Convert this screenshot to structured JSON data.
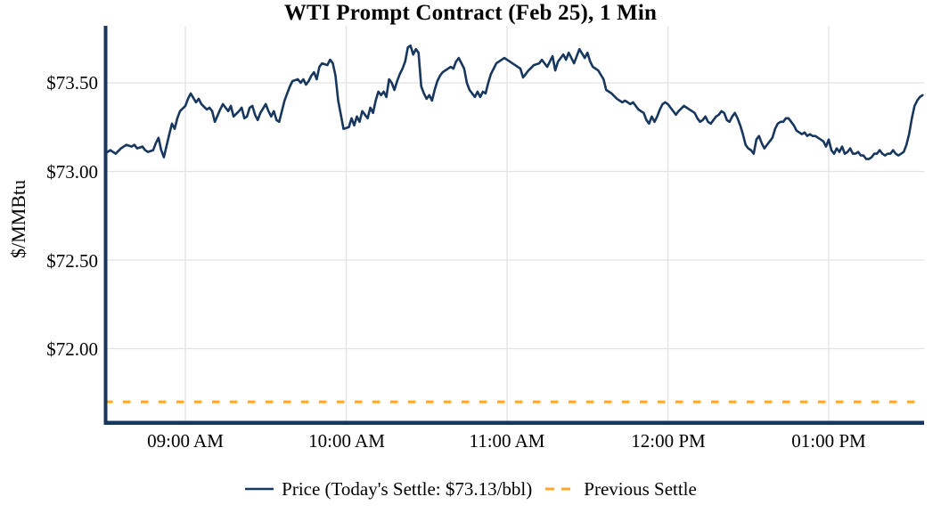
{
  "chart": {
    "title": "WTI Prompt Contract (Feb 25), 1 Min",
    "y_axis_label": "$/MMBtu",
    "y_ticks": [
      "$73.50",
      "$73.00",
      "$72.50",
      "$72.00"
    ],
    "x_ticks": [
      "09:00 AM",
      "10:00 AM",
      "11:00 AM",
      "12:00 PM",
      "01:00 PM"
    ],
    "legend": {
      "price_label": "Price (Today's Settle: $73.13/bbl)",
      "previous_settle_label": "Previous Settle"
    },
    "colors": {
      "price_line": "#17375e",
      "previous_settle_line": "#ffa726",
      "axis": "#17375e",
      "gridline": "#e2e2e2",
      "text": "#000000",
      "background": "#ffffff"
    }
  },
  "chart_data": {
    "type": "line",
    "title": "WTI Prompt Contract (Feb 25), 1 Min",
    "ylabel": "$/MMBtu",
    "y_tick_values": [
      73.5,
      73.0,
      72.5,
      72.0
    ],
    "y_tick_labels": [
      "$73.50",
      "$73.00",
      "$72.50",
      "$72.00"
    ],
    "x_tick_minutes": [
      30,
      90,
      150,
      210,
      270
    ],
    "x_tick_labels": [
      "09:00 AM",
      "10:00 AM",
      "11:00 AM",
      "12:00 PM",
      "01:00 PM"
    ],
    "x_range": [
      "08:30 AM",
      "01:36 PM"
    ],
    "ylim": [
      71.59,
      73.82
    ],
    "grid": true,
    "legend_position": "bottom-center",
    "today_settle": 73.13,
    "series": [
      {
        "name": "Price (Today's Settle: $73.13/bbl)",
        "style": "solid",
        "color": "#17375e",
        "x_unit": "minutes after 08:30 AM",
        "points": [
          [
            0,
            73.1
          ],
          [
            2,
            73.12
          ],
          [
            4,
            73.1
          ],
          [
            6,
            73.13
          ],
          [
            8,
            73.15
          ],
          [
            10,
            73.14
          ],
          [
            11,
            73.15
          ],
          [
            12,
            73.13
          ],
          [
            14,
            73.14
          ],
          [
            15,
            73.12
          ],
          [
            16,
            73.11
          ],
          [
            18,
            73.12
          ],
          [
            19,
            73.16
          ],
          [
            20,
            73.19
          ],
          [
            21,
            73.12
          ],
          [
            22,
            73.08
          ],
          [
            24,
            73.21
          ],
          [
            25,
            73.27
          ],
          [
            26,
            73.24
          ],
          [
            27,
            73.3
          ],
          [
            28,
            73.34
          ],
          [
            30,
            73.37
          ],
          [
            31,
            73.41
          ],
          [
            32,
            73.44
          ],
          [
            34,
            73.39
          ],
          [
            35,
            73.41
          ],
          [
            36,
            73.38
          ],
          [
            38,
            73.35
          ],
          [
            39,
            73.36
          ],
          [
            40,
            73.34
          ],
          [
            41,
            73.28
          ],
          [
            43,
            73.35
          ],
          [
            44,
            73.38
          ],
          [
            46,
            73.34
          ],
          [
            47,
            73.37
          ],
          [
            48,
            73.31
          ],
          [
            50,
            73.34
          ],
          [
            51,
            73.36
          ],
          [
            52,
            73.3
          ],
          [
            53,
            73.31
          ],
          [
            54,
            73.36
          ],
          [
            55,
            73.37
          ],
          [
            56,
            73.32
          ],
          [
            57,
            73.29
          ],
          [
            58,
            73.33
          ],
          [
            60,
            73.38
          ],
          [
            61,
            73.34
          ],
          [
            62,
            73.31
          ],
          [
            63,
            73.34
          ],
          [
            64,
            73.29
          ],
          [
            65,
            73.28
          ],
          [
            66,
            73.34
          ],
          [
            67,
            73.4
          ],
          [
            68,
            73.44
          ],
          [
            69,
            73.48
          ],
          [
            70,
            73.51
          ],
          [
            72,
            73.52
          ],
          [
            73,
            73.5
          ],
          [
            74,
            73.52
          ],
          [
            75,
            73.49
          ],
          [
            76,
            73.51
          ],
          [
            77,
            73.54
          ],
          [
            78,
            73.56
          ],
          [
            79,
            73.52
          ],
          [
            80,
            73.59
          ],
          [
            81,
            73.61
          ],
          [
            83,
            73.6
          ],
          [
            84,
            73.63
          ],
          [
            85,
            73.61
          ],
          [
            86,
            73.54
          ],
          [
            87,
            73.4
          ],
          [
            88,
            73.32
          ],
          [
            89,
            73.24
          ],
          [
            91,
            73.25
          ],
          [
            92,
            73.3
          ],
          [
            93,
            73.26
          ],
          [
            94,
            73.31
          ],
          [
            95,
            73.28
          ],
          [
            96,
            73.34
          ],
          [
            98,
            73.3
          ],
          [
            99,
            73.36
          ],
          [
            100,
            73.33
          ],
          [
            101,
            73.4
          ],
          [
            102,
            73.45
          ],
          [
            103,
            73.43
          ],
          [
            104,
            73.45
          ],
          [
            105,
            73.42
          ],
          [
            106,
            73.52
          ],
          [
            107,
            73.5
          ],
          [
            108,
            73.46
          ],
          [
            109,
            73.51
          ],
          [
            110,
            73.55
          ],
          [
            111,
            73.58
          ],
          [
            112,
            73.62
          ],
          [
            113,
            73.7
          ],
          [
            114,
            73.71
          ],
          [
            115,
            73.66
          ],
          [
            116,
            73.69
          ],
          [
            117,
            73.67
          ],
          [
            118,
            73.48
          ],
          [
            119,
            73.44
          ],
          [
            120,
            73.41
          ],
          [
            121,
            73.43
          ],
          [
            122,
            73.4
          ],
          [
            123,
            73.46
          ],
          [
            124,
            73.51
          ],
          [
            125,
            73.54
          ],
          [
            126,
            73.56
          ],
          [
            128,
            73.58
          ],
          [
            129,
            73.59
          ],
          [
            130,
            73.58
          ],
          [
            131,
            73.62
          ],
          [
            132,
            73.64
          ],
          [
            133,
            73.61
          ],
          [
            134,
            73.58
          ],
          [
            135,
            73.5
          ],
          [
            136,
            73.46
          ],
          [
            137,
            73.44
          ],
          [
            138,
            73.42
          ],
          [
            139,
            73.45
          ],
          [
            140,
            73.42
          ],
          [
            141,
            73.45
          ],
          [
            142,
            73.44
          ],
          [
            143,
            73.5
          ],
          [
            144,
            73.55
          ],
          [
            145,
            73.58
          ],
          [
            146,
            73.61
          ],
          [
            147,
            73.62
          ],
          [
            149,
            73.64
          ],
          [
            151,
            73.62
          ],
          [
            153,
            73.6
          ],
          [
            155,
            73.58
          ],
          [
            156,
            73.53
          ],
          [
            158,
            73.57
          ],
          [
            160,
            73.6
          ],
          [
            162,
            73.61
          ],
          [
            163,
            73.63
          ],
          [
            165,
            73.59
          ],
          [
            167,
            73.65
          ],
          [
            168,
            73.57
          ],
          [
            169,
            73.62
          ],
          [
            171,
            73.66
          ],
          [
            172,
            73.63
          ],
          [
            173,
            73.67
          ],
          [
            175,
            73.61
          ],
          [
            177,
            73.69
          ],
          [
            179,
            73.64
          ],
          [
            180,
            73.67
          ],
          [
            181,
            73.62
          ],
          [
            182,
            73.59
          ],
          [
            184,
            73.57
          ],
          [
            186,
            73.52
          ],
          [
            187,
            73.46
          ],
          [
            189,
            73.44
          ],
          [
            191,
            73.41
          ],
          [
            193,
            73.39
          ],
          [
            194,
            73.4
          ],
          [
            196,
            73.38
          ],
          [
            197,
            73.39
          ],
          [
            198,
            73.37
          ],
          [
            199,
            73.35
          ],
          [
            201,
            73.33
          ],
          [
            202,
            73.29
          ],
          [
            203,
            73.27
          ],
          [
            204,
            73.31
          ],
          [
            205,
            73.28
          ],
          [
            206,
            73.31
          ],
          [
            207,
            73.35
          ],
          [
            208,
            73.38
          ],
          [
            209,
            73.39
          ],
          [
            210,
            73.38
          ],
          [
            211,
            73.36
          ],
          [
            212,
            73.34
          ],
          [
            213,
            73.32
          ],
          [
            214,
            73.34
          ],
          [
            216,
            73.37
          ],
          [
            217,
            73.36
          ],
          [
            218,
            73.35
          ],
          [
            219,
            73.34
          ],
          [
            220,
            73.33
          ],
          [
            221,
            73.3
          ],
          [
            222,
            73.28
          ],
          [
            223,
            73.29
          ],
          [
            224,
            73.31
          ],
          [
            225,
            73.28
          ],
          [
            226,
            73.27
          ],
          [
            227,
            73.29
          ],
          [
            228,
            73.31
          ],
          [
            229,
            73.32
          ],
          [
            230,
            73.34
          ],
          [
            231,
            73.33
          ],
          [
            232,
            73.29
          ],
          [
            233,
            73.28
          ],
          [
            234,
            73.31
          ],
          [
            235,
            73.33
          ],
          [
            236,
            73.3
          ],
          [
            237,
            73.26
          ],
          [
            238,
            73.21
          ],
          [
            239,
            73.15
          ],
          [
            240,
            73.13
          ],
          [
            241,
            73.12
          ],
          [
            242,
            73.1
          ],
          [
            243,
            73.18
          ],
          [
            244,
            73.2
          ],
          [
            245,
            73.16
          ],
          [
            246,
            73.13
          ],
          [
            247,
            73.15
          ],
          [
            248,
            73.17
          ],
          [
            249,
            73.19
          ],
          [
            250,
            73.24
          ],
          [
            251,
            73.27
          ],
          [
            252,
            73.28
          ],
          [
            253,
            73.28
          ],
          [
            254,
            73.3
          ],
          [
            255,
            73.3
          ],
          [
            256,
            73.28
          ],
          [
            257,
            73.26
          ],
          [
            258,
            73.23
          ],
          [
            259,
            73.22
          ],
          [
            260,
            73.21
          ],
          [
            261,
            73.22
          ],
          [
            262,
            73.2
          ],
          [
            263,
            73.21
          ],
          [
            264,
            73.2
          ],
          [
            265,
            73.2
          ],
          [
            266,
            73.19
          ],
          [
            267,
            73.18
          ],
          [
            268,
            73.17
          ],
          [
            269,
            73.14
          ],
          [
            270,
            73.18
          ],
          [
            271,
            73.12
          ],
          [
            272,
            73.1
          ],
          [
            273,
            73.13
          ],
          [
            274,
            73.11
          ],
          [
            275,
            73.14
          ],
          [
            276,
            73.1
          ],
          [
            277,
            73.11
          ],
          [
            278,
            73.13
          ],
          [
            279,
            73.1
          ],
          [
            280,
            73.1
          ],
          [
            281,
            73.11
          ],
          [
            282,
            73.09
          ],
          [
            283,
            73.09
          ],
          [
            284,
            73.07
          ],
          [
            285,
            73.07
          ],
          [
            286,
            73.08
          ],
          [
            287,
            73.1
          ],
          [
            288,
            73.1
          ],
          [
            289,
            73.12
          ],
          [
            290,
            73.1
          ],
          [
            291,
            73.09
          ],
          [
            292,
            73.1
          ],
          [
            293,
            73.1
          ],
          [
            294,
            73.12
          ],
          [
            295,
            73.1
          ],
          [
            296,
            73.09
          ],
          [
            297,
            73.1
          ],
          [
            298,
            73.11
          ],
          [
            299,
            73.15
          ],
          [
            300,
            73.21
          ],
          [
            301,
            73.3
          ],
          [
            302,
            73.37
          ],
          [
            303,
            73.4
          ],
          [
            304,
            73.42
          ],
          [
            305,
            73.43
          ]
        ]
      },
      {
        "name": "Previous Settle",
        "style": "dashed",
        "color": "#ffa726",
        "value": 71.7
      }
    ]
  }
}
